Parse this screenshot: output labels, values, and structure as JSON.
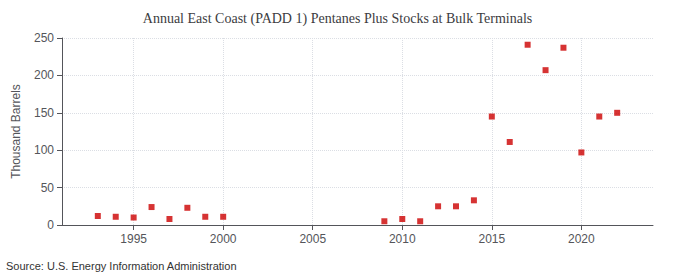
{
  "chart_data": {
    "type": "scatter",
    "title": "Annual East Coast (PADD 1) Pentanes Plus Stocks at Bulk Terminals",
    "ylabel": "Thousand Barrels",
    "annotations": [
      "Source: U.S. Energy Information Administration"
    ],
    "x": [
      1993,
      1994,
      1995,
      1996,
      1997,
      1998,
      1999,
      2000,
      2009,
      2010,
      2011,
      2012,
      2013,
      2014,
      2015,
      2016,
      2017,
      2018,
      2019,
      2020,
      2021,
      2022
    ],
    "values": [
      12,
      11,
      10,
      24,
      8,
      23,
      11,
      11,
      5,
      8,
      5,
      25,
      25,
      33,
      145,
      111,
      241,
      207,
      237,
      97,
      145,
      150
    ],
    "color": "#cc0000",
    "marker": "square",
    "xlim": [
      1991,
      2024
    ],
    "xticks": [
      1995,
      2000,
      2005,
      2010,
      2015,
      2020
    ],
    "ylim": [
      0,
      250
    ],
    "yticks": [
      0,
      50,
      100,
      150,
      200,
      250
    ],
    "grid": true
  }
}
